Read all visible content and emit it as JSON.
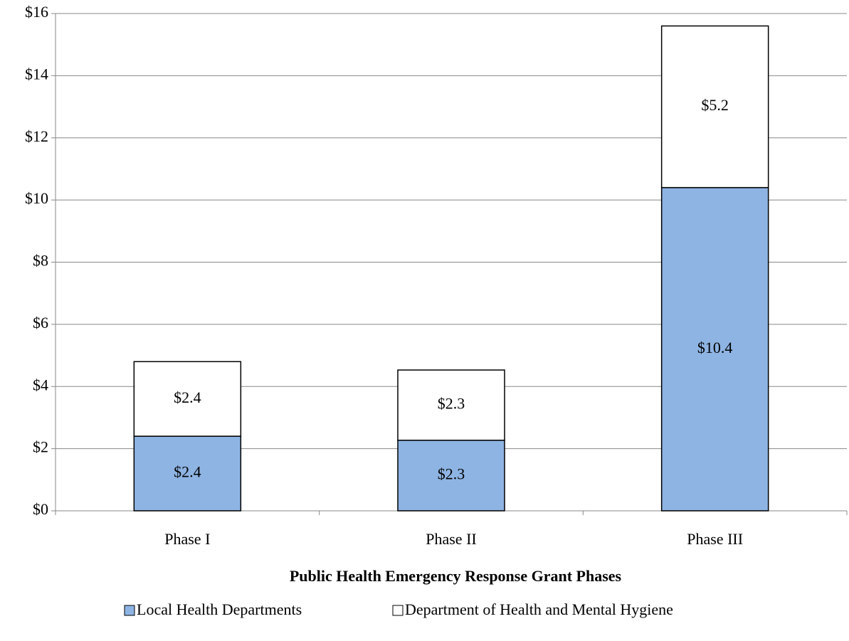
{
  "chart_data": {
    "type": "stacked_bar",
    "x_label": "Public Health Emergency Response Grant Phases",
    "categories": [
      "Phase I",
      "Phase II",
      "Phase III"
    ],
    "series": [
      {
        "name": "Local Health Departments",
        "color": "#8eb4e3",
        "values": [
          2.4,
          2.27,
          10.4
        ],
        "value_labels": [
          "$2.4",
          "$2.3",
          "$10.4"
        ]
      },
      {
        "name": "Department of Health and Mental Hygiene",
        "color": "#ffffff",
        "values": [
          2.4,
          2.26,
          5.2
        ],
        "value_labels": [
          "$2.4",
          "$2.3",
          "$5.2"
        ]
      }
    ],
    "ylim": [
      0,
      16
    ],
    "yticks": [
      {
        "value": 0,
        "label": "$0"
      },
      {
        "value": 2,
        "label": "$2"
      },
      {
        "value": 4,
        "label": "$4"
      },
      {
        "value": 6,
        "label": "$6"
      },
      {
        "value": 8,
        "label": "$8"
      },
      {
        "value": 10,
        "label": "$10"
      },
      {
        "value": 12,
        "label": "$12"
      },
      {
        "value": 14,
        "label": "$14"
      },
      {
        "value": 16,
        "label": "$16"
      }
    ],
    "grid": true,
    "legend": "bottom"
  }
}
